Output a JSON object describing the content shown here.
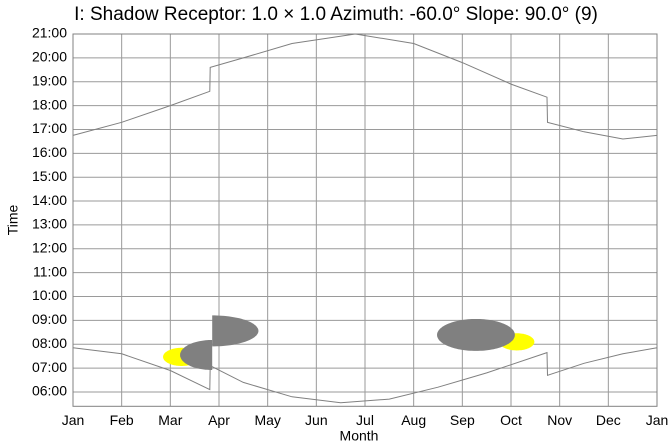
{
  "chart_data": {
    "type": "line",
    "title": "I: Shadow Receptor: 1.0 × 1.0  Azimuth: -60.0°  Slope: 90.0° (9)",
    "x_label": "Month",
    "y_label": "Time",
    "xlim": [
      0,
      12
    ],
    "xticks": [
      {
        "value": 0,
        "label": "Jan"
      },
      {
        "value": 1,
        "label": "Feb"
      },
      {
        "value": 2,
        "label": "Mar"
      },
      {
        "value": 3,
        "label": "Apr"
      },
      {
        "value": 4,
        "label": "May"
      },
      {
        "value": 5,
        "label": "Jun"
      },
      {
        "value": 6,
        "label": "Jul"
      },
      {
        "value": 7,
        "label": "Aug"
      },
      {
        "value": 8,
        "label": "Sep"
      },
      {
        "value": 9,
        "label": "Oct"
      },
      {
        "value": 10,
        "label": "Nov"
      },
      {
        "value": 11,
        "label": "Dec"
      },
      {
        "value": 12,
        "label": "Jan"
      }
    ],
    "ylim": [
      5.4,
      21.0
    ],
    "yticks": [
      {
        "value": 6,
        "label": "06:00"
      },
      {
        "value": 7,
        "label": "07:00"
      },
      {
        "value": 8,
        "label": "08:00"
      },
      {
        "value": 9,
        "label": "09:00"
      },
      {
        "value": 10,
        "label": "10:00"
      },
      {
        "value": 11,
        "label": "11:00"
      },
      {
        "value": 12,
        "label": "12:00"
      },
      {
        "value": 13,
        "label": "13:00"
      },
      {
        "value": 14,
        "label": "14:00"
      },
      {
        "value": 15,
        "label": "15:00"
      },
      {
        "value": 16,
        "label": "16:00"
      },
      {
        "value": 17,
        "label": "17:00"
      },
      {
        "value": 18,
        "label": "18:00"
      },
      {
        "value": 19,
        "label": "19:00"
      },
      {
        "value": 20,
        "label": "20:00"
      },
      {
        "value": 21,
        "label": "21:00"
      }
    ],
    "grid": true,
    "series": [
      {
        "color": "#808080",
        "x": [
          0,
          1,
          2,
          2.81,
          2.82,
          3.5,
          4.5,
          5.8,
          7,
          8,
          9,
          9.74,
          9.75,
          10.5,
          11.3,
          12
        ],
        "values": [
          16.75,
          17.3,
          18.0,
          18.6,
          19.6,
          20.0,
          20.6,
          21.0,
          20.6,
          19.8,
          18.9,
          18.35,
          17.3,
          16.9,
          16.6,
          16.75
        ]
      },
      {
        "color": "#808080",
        "x": [
          0,
          1,
          2,
          2.81,
          2.82,
          3.5,
          4.5,
          5.5,
          6.5,
          7.5,
          8.5,
          9.74,
          9.75,
          10.5,
          11.3,
          12
        ],
        "values": [
          7.85,
          7.6,
          6.9,
          6.1,
          7.1,
          6.4,
          5.8,
          5.55,
          5.7,
          6.2,
          6.8,
          7.65,
          6.7,
          7.2,
          7.6,
          7.85
        ]
      }
    ],
    "shadows": [
      {
        "color": "#ffff00",
        "cx": 2.23,
        "rx": 0.38,
        "cy": 7.47,
        "ry": 0.38
      },
      {
        "color": "#ffff00",
        "cx": 9.12,
        "rx": 0.36,
        "cy": 8.1,
        "ry": 0.36
      },
      {
        "color": "#808080",
        "cx": 2.86,
        "rx": 0.66,
        "cy": 7.55,
        "ry": 0.63,
        "xmax": 2.86
      },
      {
        "color": "#808080",
        "cx": 2.86,
        "rx": 0.95,
        "cy": 8.56,
        "ry": 0.65,
        "xmin": 2.86
      },
      {
        "color": "#808080",
        "cx": 8.28,
        "rx": 0.8,
        "cy": 8.39,
        "ry": 0.67
      }
    ]
  }
}
